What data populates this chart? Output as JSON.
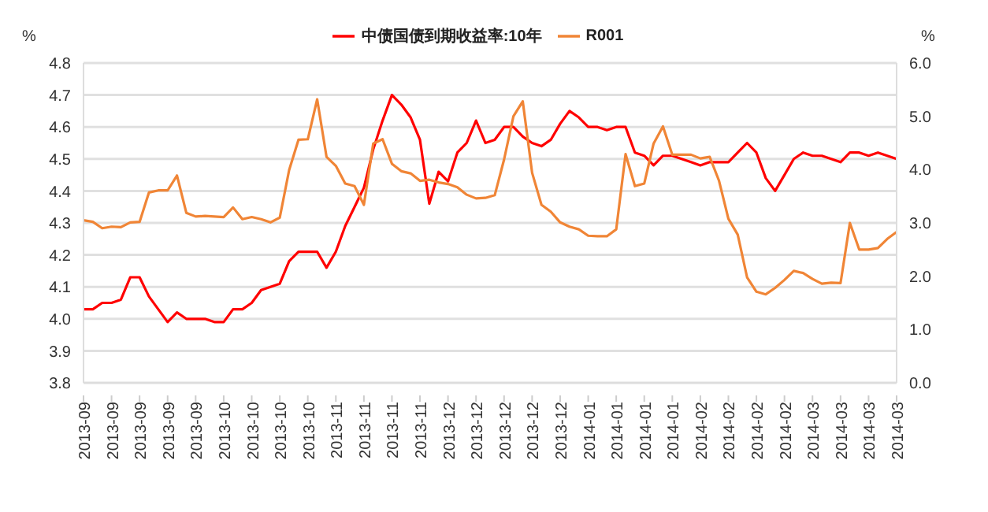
{
  "chart_data": {
    "type": "line",
    "categories": [
      "2013-09",
      null,
      null,
      "2013-09",
      null,
      null,
      "2013-09",
      null,
      null,
      "2013-09",
      null,
      null,
      "2013-09",
      null,
      null,
      "2013-10",
      null,
      null,
      "2013-10",
      null,
      null,
      "2013-10",
      null,
      null,
      "2013-10",
      null,
      null,
      "2013-11",
      null,
      null,
      "2013-11",
      null,
      null,
      "2013-11",
      null,
      null,
      "2013-11",
      null,
      null,
      "2013-12",
      null,
      null,
      "2013-12",
      null,
      null,
      "2013-12",
      null,
      null,
      "2013-12",
      null,
      null,
      "2013-12",
      null,
      null,
      "2014-01",
      null,
      null,
      "2014-01",
      null,
      null,
      "2014-01",
      null,
      null,
      "2014-01",
      null,
      null,
      "2014-02",
      null,
      null,
      "2014-02",
      null,
      null,
      "2014-02",
      null,
      null,
      "2014-02",
      null,
      null,
      "2014-03",
      null,
      null,
      "2014-03",
      null,
      null,
      "2014-03",
      null,
      null,
      "2014-03"
    ],
    "series": [
      {
        "name": "中债国债到期收益率:10年",
        "color": "#ff0000",
        "values": [
          4.03,
          4.03,
          4.05,
          4.05,
          4.06,
          4.13,
          4.13,
          4.07,
          4.03,
          3.99,
          4.02,
          4.0,
          4.0,
          4.0,
          3.99,
          3.99,
          4.03,
          4.03,
          4.05,
          4.09,
          4.1,
          4.11,
          4.18,
          4.21,
          4.21,
          4.21,
          4.16,
          4.21,
          4.29,
          4.35,
          4.41,
          4.53,
          4.62,
          4.7,
          4.67,
          4.63,
          4.56,
          4.36,
          4.46,
          4.43,
          4.52,
          4.55,
          4.62,
          4.55,
          4.56,
          4.6,
          4.6,
          4.57,
          4.55,
          4.54,
          4.56,
          4.61,
          4.65,
          4.63,
          4.6,
          4.6,
          4.59,
          4.6,
          4.6,
          4.52,
          4.51,
          4.48,
          4.51,
          4.51,
          4.5,
          4.49,
          4.48,
          4.49,
          4.49,
          4.49,
          4.52,
          4.55,
          4.52,
          4.44,
          4.4,
          4.45,
          4.5,
          4.52,
          4.51,
          4.51,
          4.5,
          4.49,
          4.52,
          4.52,
          4.51,
          4.52,
          4.51,
          4.5
        ]
      },
      {
        "name": "R001",
        "color": "#f08536",
        "axis": "y2",
        "values": [
          3.05,
          3.02,
          2.9,
          2.93,
          2.92,
          3.01,
          3.02,
          3.57,
          3.61,
          3.61,
          3.89,
          3.19,
          3.12,
          3.13,
          3.12,
          3.11,
          3.29,
          3.07,
          3.11,
          3.07,
          3.01,
          3.1,
          3.99,
          4.56,
          4.57,
          5.32,
          4.24,
          4.07,
          3.74,
          3.69,
          3.34,
          4.49,
          4.57,
          4.11,
          3.97,
          3.93,
          3.79,
          3.81,
          3.76,
          3.73,
          3.67,
          3.53,
          3.46,
          3.47,
          3.52,
          4.19,
          5.0,
          5.28,
          3.94,
          3.34,
          3.21,
          3.01,
          2.93,
          2.88,
          2.76,
          2.75,
          2.75,
          2.88,
          4.29,
          3.69,
          3.74,
          4.49,
          4.81,
          4.28,
          4.28,
          4.28,
          4.21,
          4.24,
          3.79,
          3.08,
          2.78,
          1.98,
          1.71,
          1.66,
          1.78,
          1.93,
          2.1,
          2.06,
          1.95,
          1.86,
          1.88,
          1.87,
          3.0,
          2.5,
          2.5,
          2.53,
          2.7,
          2.83
        ]
      }
    ],
    "ylabel": "%",
    "y2label": "%",
    "ylim": [
      3.8,
      4.8
    ],
    "yticks": [
      3.8,
      3.9,
      {
        "value": 4,
        "label": "4.0"
      },
      4.1,
      4.2,
      4.3,
      4.4,
      4.5,
      4.6,
      4.7,
      4.8
    ],
    "y2lim": [
      0,
      6
    ],
    "y2ticks": [
      {
        "value": 0,
        "label": "0.0"
      },
      {
        "value": 1,
        "label": "1.0"
      },
      {
        "value": 2,
        "label": "2.0"
      },
      {
        "value": 3,
        "label": "3.0"
      },
      {
        "value": 4,
        "label": "4.0"
      },
      {
        "value": 5,
        "label": "5.0"
      },
      {
        "value": 6,
        "label": "6.0"
      }
    ],
    "grid": "y",
    "legend": "top",
    "marker": "none",
    "line_style": "solid"
  }
}
